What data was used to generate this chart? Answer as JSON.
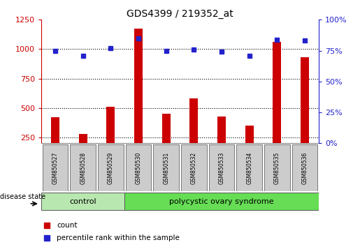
{
  "title": "GDS4399 / 219352_at",
  "samples": [
    "GSM850527",
    "GSM850528",
    "GSM850529",
    "GSM850530",
    "GSM850531",
    "GSM850532",
    "GSM850533",
    "GSM850534",
    "GSM850535",
    "GSM850536"
  ],
  "counts": [
    420,
    280,
    510,
    1175,
    450,
    580,
    430,
    350,
    1060,
    930
  ],
  "percentiles_pct": [
    75,
    71,
    77,
    85,
    75,
    76,
    74,
    71,
    84,
    83
  ],
  "count_color": "#cc0000",
  "percentile_color": "#2222cc",
  "ylim_left": [
    200,
    1250
  ],
  "ylim_right": [
    0,
    100
  ],
  "yticks_left": [
    250,
    500,
    750,
    1000,
    1250
  ],
  "yticks_right": [
    0,
    25,
    50,
    75,
    100
  ],
  "control_label": "control",
  "disease_label": "polycystic ovary syndrome",
  "disease_state_label": "disease state",
  "legend_count": "count",
  "legend_percentile": "percentile rank within the sample",
  "control_color": "#b8e8b0",
  "disease_color": "#66dd55",
  "box_bg": "#cccccc",
  "dotted_lines": [
    250,
    500,
    750,
    1000
  ],
  "n_control": 3
}
